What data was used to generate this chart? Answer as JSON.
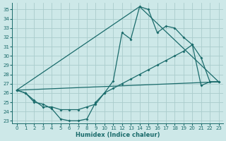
{
  "xlabel": "Humidex (Indice chaleur)",
  "bg_color": "#cde8e8",
  "grid_color": "#aacccc",
  "line_color": "#1a6b6b",
  "xlim": [
    -0.5,
    23.5
  ],
  "ylim": [
    22.7,
    35.7
  ],
  "yticks": [
    23,
    24,
    25,
    26,
    27,
    28,
    29,
    30,
    31,
    32,
    33,
    34,
    35
  ],
  "xticks": [
    0,
    1,
    2,
    3,
    4,
    5,
    6,
    7,
    8,
    9,
    10,
    11,
    12,
    13,
    14,
    15,
    16,
    17,
    18,
    19,
    20,
    21,
    22,
    23
  ],
  "series1_x": [
    0,
    1,
    2,
    3,
    4,
    5,
    6,
    7,
    8,
    9,
    10,
    11,
    12,
    13,
    14,
    15,
    16,
    17,
    18,
    19,
    20,
    21,
    22,
    23
  ],
  "series1_y": [
    26.3,
    26.0,
    25.0,
    24.8,
    24.3,
    23.2,
    23.0,
    23.0,
    23.2,
    25.0,
    26.0,
    27.3,
    32.5,
    31.8,
    35.3,
    35.0,
    32.5,
    33.2,
    33.0,
    32.0,
    31.2,
    29.8,
    27.2,
    27.2
  ],
  "series2_x": [
    0,
    23
  ],
  "series2_y": [
    26.3,
    27.2
  ],
  "series3_x": [
    0,
    14,
    23
  ],
  "series3_y": [
    26.3,
    35.3,
    27.2
  ],
  "series4_x": [
    0,
    1,
    2,
    3,
    4,
    5,
    6,
    7,
    8,
    9,
    10,
    11,
    12,
    13,
    14,
    15,
    16,
    17,
    18,
    19,
    20,
    21,
    22,
    23
  ],
  "series4_y": [
    26.3,
    26.0,
    25.2,
    24.5,
    24.5,
    24.2,
    24.2,
    24.2,
    24.5,
    24.8,
    26.0,
    26.5,
    27.0,
    27.5,
    28.0,
    28.5,
    29.0,
    29.5,
    30.0,
    30.5,
    31.2,
    26.8,
    27.2,
    27.2
  ]
}
